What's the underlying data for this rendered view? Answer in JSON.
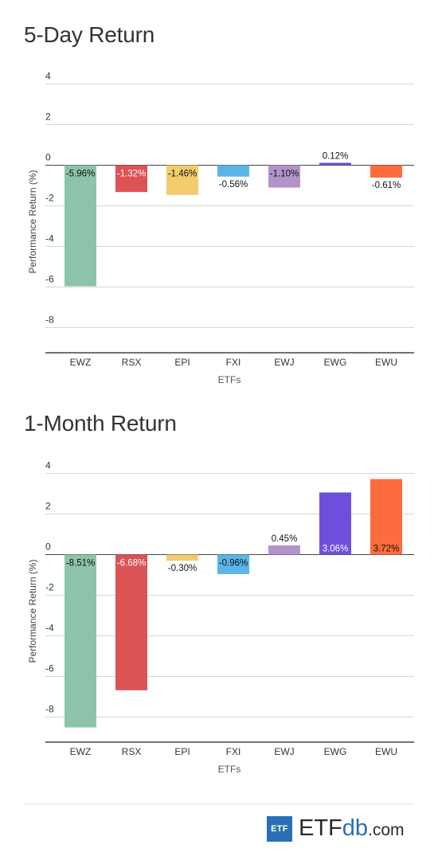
{
  "chart_data": [
    {
      "type": "bar",
      "title": "5-Day Return",
      "xlabel": "ETFs",
      "ylabel": "Performance Return (%)",
      "ylim": [
        -9.3,
        4.3
      ],
      "yticks": [
        4,
        2,
        0,
        -2,
        -4,
        -6,
        -8
      ],
      "grid": true,
      "categories": [
        "EWZ",
        "RSX",
        "EPI",
        "FXI",
        "EWJ",
        "EWG",
        "EWU"
      ],
      "values": [
        -5.96,
        -1.32,
        -1.46,
        -0.56,
        -1.1,
        0.12,
        -0.61
      ],
      "labels": [
        "-5.96%",
        "-1.32%",
        "-1.46%",
        "-0.56%",
        "-1.10%",
        "0.12%",
        "-0.61%"
      ],
      "colors": [
        "#8dc3a7",
        "#dc5356",
        "#f1cd6d",
        "#5ab5e8",
        "#b294cb",
        "#6e4fdc",
        "#fc6c3c"
      ]
    },
    {
      "type": "bar",
      "title": "1-Month Return",
      "xlabel": "ETFs",
      "ylabel": "Performance Return (%)",
      "ylim": [
        -9.3,
        4.3
      ],
      "yticks": [
        4,
        2,
        0,
        -2,
        -4,
        -6,
        -8
      ],
      "grid": true,
      "categories": [
        "EWZ",
        "RSX",
        "EPI",
        "FXI",
        "EWJ",
        "EWG",
        "EWU"
      ],
      "values": [
        -8.51,
        -6.68,
        -0.3,
        -0.96,
        0.45,
        3.06,
        3.72
      ],
      "labels": [
        "-8.51%",
        "-6.68%",
        "-0.30%",
        "-0.96%",
        "0.45%",
        "3.06%",
        "3.72%"
      ],
      "colors": [
        "#8dc3a7",
        "#dc5356",
        "#f1cd6d",
        "#5ab5e8",
        "#b294cb",
        "#6e4fdc",
        "#fc6c3c"
      ]
    }
  ],
  "footer": {
    "logo_box": "ETF",
    "logo_etf": "ETF",
    "logo_db": "db",
    "logo_com": ".com",
    "brand_color": "#2a6fb6"
  }
}
